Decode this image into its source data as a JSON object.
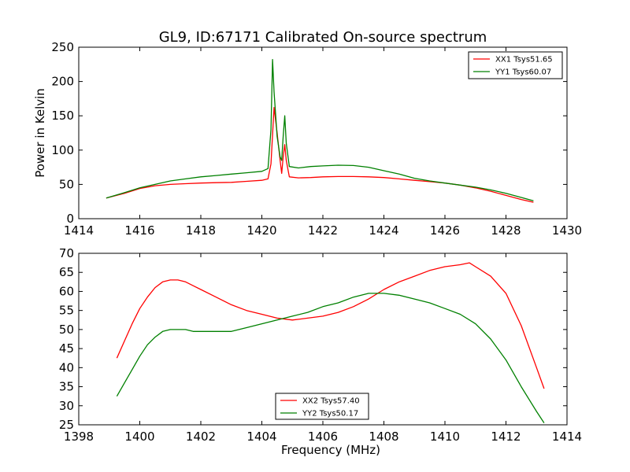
{
  "figure": {
    "title": "GL9, ID:67171 Calibrated On-source spectrum"
  },
  "chart_data": [
    {
      "type": "line",
      "title": "GL9, ID:67171 Calibrated On-source spectrum",
      "xlabel": "",
      "ylabel": "Power in Kelvin",
      "xlim": [
        1414,
        1430
      ],
      "ylim": [
        0,
        250
      ],
      "xticks": [
        1414,
        1416,
        1418,
        1420,
        1422,
        1424,
        1426,
        1428,
        1430
      ],
      "yticks": [
        0,
        50,
        100,
        150,
        200,
        250
      ],
      "grid": false,
      "legend_position": "top-right",
      "series": [
        {
          "name": "XX1 Tsys51.65",
          "color": "#ff0000",
          "x": [
            1414.9,
            1415.5,
            1416.0,
            1416.5,
            1417.0,
            1417.5,
            1418.0,
            1418.5,
            1419.0,
            1419.5,
            1420.0,
            1420.2,
            1420.3,
            1420.4,
            1420.5,
            1420.6,
            1420.65,
            1420.7,
            1420.75,
            1420.8,
            1420.9,
            1421.2,
            1421.6,
            1422.0,
            1422.5,
            1423.0,
            1423.5,
            1424.0,
            1424.5,
            1425.0,
            1425.5,
            1426.0,
            1426.5,
            1427.0,
            1427.5,
            1428.0,
            1428.5,
            1428.9
          ],
          "values": [
            30,
            37,
            44,
            48,
            50,
            51,
            52,
            52.5,
            53,
            54.5,
            56,
            58,
            80,
            162,
            125,
            85,
            66,
            90,
            108,
            85,
            61,
            59.5,
            60,
            61,
            61.5,
            61.5,
            61,
            60,
            58,
            56,
            54,
            52,
            49,
            45,
            40,
            34,
            28,
            24
          ]
        },
        {
          "name": "YY1 Tsys60.07",
          "color": "#008000",
          "x": [
            1414.9,
            1415.5,
            1416.0,
            1416.5,
            1417.0,
            1417.5,
            1418.0,
            1418.5,
            1419.0,
            1419.5,
            1420.0,
            1420.2,
            1420.3,
            1420.35,
            1420.4,
            1420.5,
            1420.6,
            1420.65,
            1420.7,
            1420.75,
            1420.8,
            1420.9,
            1421.2,
            1421.6,
            1422.0,
            1422.5,
            1423.0,
            1423.5,
            1424.0,
            1424.5,
            1425.0,
            1425.5,
            1426.0,
            1426.5,
            1427.0,
            1427.5,
            1428.0,
            1428.5,
            1428.9
          ],
          "values": [
            30,
            38,
            45,
            50,
            55,
            58,
            61,
            63,
            65,
            67,
            69,
            73,
            130,
            232,
            185,
            120,
            90,
            85,
            120,
            150,
            110,
            76,
            74,
            76,
            77,
            78,
            77.5,
            75,
            70,
            65,
            59,
            55,
            52,
            49,
            46,
            42,
            37,
            31,
            26
          ]
        }
      ]
    },
    {
      "type": "line",
      "title": "",
      "xlabel": "Frequency (MHz)",
      "ylabel": "",
      "xlim": [
        1398,
        1414
      ],
      "ylim": [
        25,
        70
      ],
      "xticks": [
        1398,
        1400,
        1402,
        1404,
        1406,
        1408,
        1410,
        1412,
        1414
      ],
      "yticks": [
        25,
        30,
        35,
        40,
        45,
        50,
        55,
        60,
        65,
        70
      ],
      "grid": false,
      "legend_position": "bottom-center",
      "series": [
        {
          "name": "XX2 Tsys57.40",
          "color": "#ff0000",
          "x": [
            1399.25,
            1399.5,
            1399.75,
            1400.0,
            1400.25,
            1400.5,
            1400.75,
            1401.0,
            1401.25,
            1401.5,
            1401.75,
            1402.0,
            1402.5,
            1403.0,
            1403.5,
            1404.0,
            1404.5,
            1405.0,
            1405.5,
            1406.0,
            1406.5,
            1407.0,
            1407.5,
            1408.0,
            1408.5,
            1409.0,
            1409.5,
            1410.0,
            1410.5,
            1410.8,
            1411.0,
            1411.5,
            1412.0,
            1412.5,
            1413.0,
            1413.25
          ],
          "values": [
            42.5,
            47,
            51.5,
            55.5,
            58.5,
            61,
            62.5,
            63,
            63,
            62.5,
            61.5,
            60.5,
            58.5,
            56.5,
            55,
            54,
            53,
            52.5,
            53,
            53.5,
            54.5,
            56,
            58,
            60.5,
            62.5,
            64,
            65.5,
            66.5,
            67,
            67.5,
            66.5,
            64,
            59.5,
            51,
            40,
            34.5
          ]
        },
        {
          "name": "YY2 Tsys50.17",
          "color": "#008000",
          "x": [
            1399.25,
            1399.5,
            1399.75,
            1400.0,
            1400.25,
            1400.5,
            1400.75,
            1401.0,
            1401.25,
            1401.5,
            1401.75,
            1402.0,
            1402.5,
            1403.0,
            1403.5,
            1404.0,
            1404.5,
            1405.0,
            1405.5,
            1406.0,
            1406.5,
            1407.0,
            1407.5,
            1408.0,
            1408.5,
            1409.0,
            1409.5,
            1410.0,
            1410.5,
            1411.0,
            1411.5,
            1412.0,
            1412.5,
            1413.0,
            1413.25
          ],
          "values": [
            32.5,
            36,
            39.5,
            43,
            46,
            48,
            49.5,
            50,
            50,
            50,
            49.5,
            49.5,
            49.5,
            49.5,
            50.5,
            51.5,
            52.5,
            53.5,
            54.5,
            56,
            57,
            58.5,
            59.5,
            59.5,
            59,
            58,
            57,
            55.5,
            54,
            51.5,
            47.5,
            42,
            35,
            28.5,
            25.5
          ]
        }
      ]
    }
  ]
}
